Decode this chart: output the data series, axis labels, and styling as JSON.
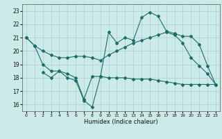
{
  "title": "",
  "xlabel": "Humidex (Indice chaleur)",
  "bg_color": "#cceae8",
  "line_color": "#1e6b6b",
  "grid_color": "#aed4d2",
  "xlim": [
    -0.5,
    23.5
  ],
  "ylim": [
    15.5,
    23.5
  ],
  "yticks": [
    16,
    17,
    18,
    19,
    20,
    21,
    22,
    23
  ],
  "xticks": [
    0,
    1,
    2,
    3,
    4,
    5,
    6,
    7,
    8,
    9,
    10,
    11,
    12,
    13,
    14,
    15,
    16,
    17,
    18,
    19,
    20,
    21,
    22,
    23
  ],
  "line1_x": [
    0,
    1,
    2,
    3,
    4,
    5,
    6,
    7,
    8,
    9,
    10,
    11,
    12,
    13,
    14,
    15,
    16,
    17,
    18,
    19,
    20,
    21,
    22,
    23
  ],
  "line1_y": [
    21.0,
    20.4,
    20.0,
    19.7,
    19.5,
    19.5,
    19.6,
    19.6,
    19.5,
    19.3,
    19.7,
    20.0,
    20.3,
    20.6,
    20.8,
    21.0,
    21.2,
    21.4,
    21.2,
    20.6,
    19.5,
    18.9,
    18.3,
    17.5
  ],
  "line2_x": [
    0,
    1,
    2,
    3,
    4,
    5,
    6,
    7,
    8,
    9,
    10,
    11,
    12,
    13,
    14,
    15,
    16,
    17,
    18,
    19,
    20,
    21,
    22,
    23
  ],
  "line2_y": [
    21.0,
    20.4,
    19.0,
    18.5,
    18.5,
    18.0,
    17.8,
    16.3,
    15.8,
    18.1,
    21.4,
    20.6,
    21.0,
    20.8,
    22.5,
    22.9,
    22.6,
    21.5,
    21.3,
    21.1,
    21.1,
    20.5,
    18.9,
    17.5
  ],
  "line3_x": [
    2,
    3,
    4,
    5,
    6,
    7,
    8,
    9,
    10,
    11,
    12,
    13,
    14,
    15,
    16,
    17,
    18,
    19,
    20,
    21,
    22,
    23
  ],
  "line3_y": [
    18.4,
    18.0,
    18.5,
    18.3,
    18.0,
    16.4,
    18.1,
    18.1,
    18.0,
    18.0,
    18.0,
    17.9,
    17.9,
    17.9,
    17.8,
    17.7,
    17.6,
    17.5,
    17.5,
    17.5,
    17.5,
    17.5
  ]
}
